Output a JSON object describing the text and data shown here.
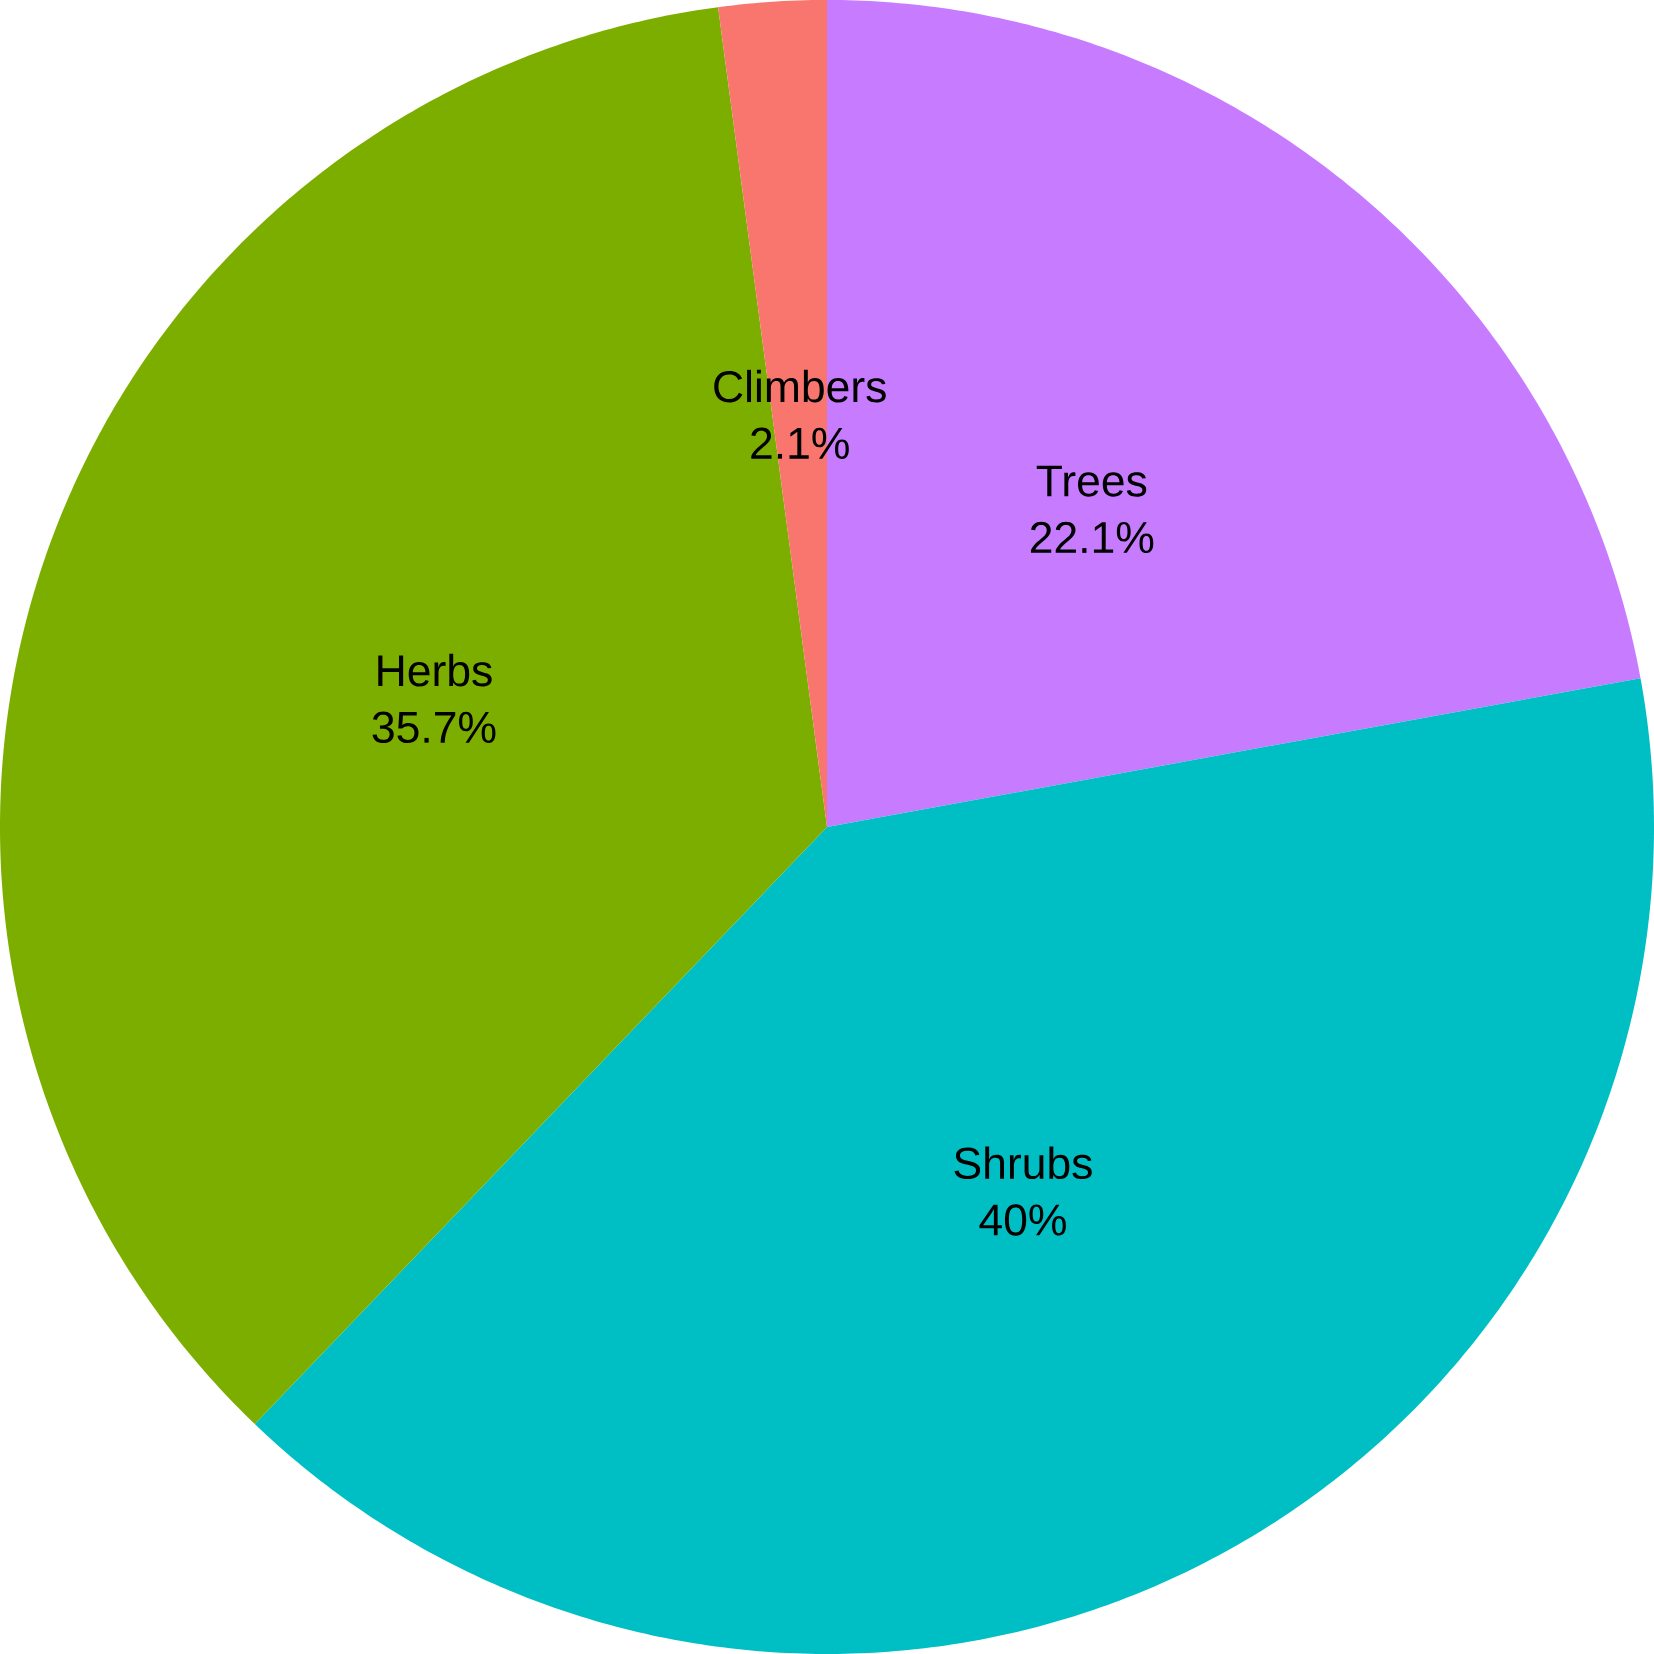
{
  "chart_data": {
    "type": "pie",
    "categories": [
      "Trees",
      "Shrubs",
      "Herbs",
      "Climbers"
    ],
    "values": [
      22.1,
      40,
      35.7,
      2.1
    ],
    "value_labels": [
      "22.1%",
      "40%",
      "35.7%",
      "2.1%"
    ],
    "colors": [
      "#C77CFF",
      "#00BFC4",
      "#7CAE00",
      "#F8766D"
    ]
  }
}
